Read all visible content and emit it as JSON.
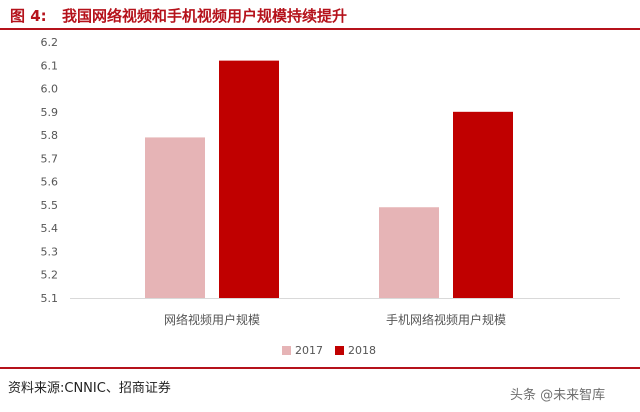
{
  "figure": {
    "label": "图 4:",
    "title": "我国网络视频和手机视频用户规模持续提升"
  },
  "source": "资料来源:CNNIC、招商证券",
  "watermark": "头条 @未来智库",
  "chart_data": {
    "type": "bar",
    "categories": [
      "网络视频用户规模",
      "手机网络视频用户规模"
    ],
    "series": [
      {
        "name": "2017",
        "color": "#e6b4b6",
        "values": [
          5.79,
          5.49
        ]
      },
      {
        "name": "2018",
        "color": "#c00000",
        "values": [
          6.12,
          5.9
        ]
      }
    ],
    "ylim": [
      5.1,
      6.2
    ],
    "yticks": [
      "5.1",
      "5.2",
      "5.3",
      "5.4",
      "5.5",
      "5.6",
      "5.7",
      "5.8",
      "5.9",
      "6.0",
      "6.1",
      "6.2"
    ],
    "legend_position": "bottom",
    "grid": false
  }
}
